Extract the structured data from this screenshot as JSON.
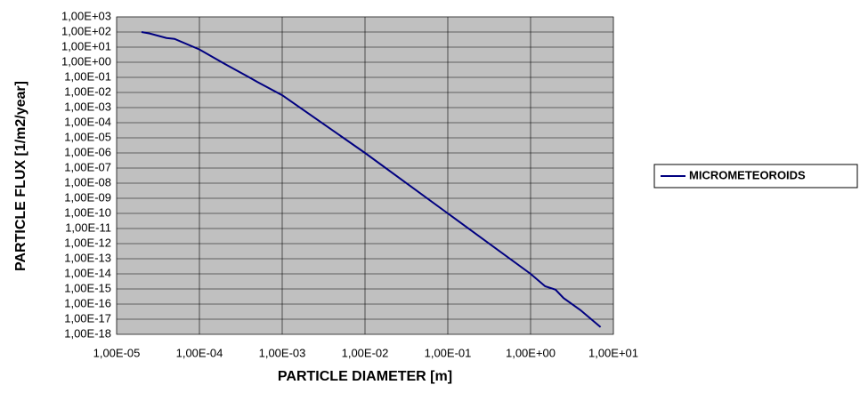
{
  "chart_data": {
    "type": "line",
    "x_label": "PARTICLE DIAMETER [m]",
    "y_label": "PARTICLE FLUX [1/m2/year]",
    "x": [
      2e-05,
      2.5e-05,
      4e-05,
      5e-05,
      0.0001,
      0.0002,
      0.0004,
      0.0005,
      0.001,
      0.01,
      0.1,
      1,
      1.5,
      2,
      2.5,
      4,
      7
    ],
    "series": [
      {
        "name": "MICROMETEOROIDS",
        "color": "#000080",
        "values": [
          100,
          80,
          40,
          35,
          7,
          0.8,
          0.1,
          0.05,
          0.0066,
          1e-06,
          1e-10,
          1e-14,
          1.5e-15,
          9e-16,
          2.5e-16,
          4e-17,
          3e-18
        ]
      }
    ],
    "x_log": true,
    "y_log": true,
    "grid": true,
    "legend": "right",
    "xlim": [
      1e-05,
      10
    ],
    "xticks": [
      {
        "value": 1e-05,
        "label": "1,00E-05"
      },
      {
        "value": 0.0001,
        "label": "1,00E-04"
      },
      {
        "value": 0.001,
        "label": "1,00E-03"
      },
      {
        "value": 0.01,
        "label": "1,00E-02"
      },
      {
        "value": 0.1,
        "label": "1,00E-01"
      },
      {
        "value": 1,
        "label": "1,00E+00"
      },
      {
        "value": 10,
        "label": "1,00E+01"
      }
    ],
    "ylim": [
      1e-18,
      1000
    ],
    "yticks": [
      {
        "value": 1000,
        "label": "1,00E+03"
      },
      {
        "value": 100,
        "label": "1,00E+02"
      },
      {
        "value": 10,
        "label": "1,00E+01"
      },
      {
        "value": 1,
        "label": "1,00E+00"
      },
      {
        "value": 0.1,
        "label": "1,00E-01"
      },
      {
        "value": 0.01,
        "label": "1,00E-02"
      },
      {
        "value": 0.001,
        "label": "1,00E-03"
      },
      {
        "value": 0.0001,
        "label": "1,00E-04"
      },
      {
        "value": 1e-05,
        "label": "1,00E-05"
      },
      {
        "value": 1e-06,
        "label": "1,00E-06"
      },
      {
        "value": 1e-07,
        "label": "1,00E-07"
      },
      {
        "value": 1e-08,
        "label": "1,00E-08"
      },
      {
        "value": 1e-09,
        "label": "1,00E-09"
      },
      {
        "value": 1e-10,
        "label": "1,00E-10"
      },
      {
        "value": 1e-11,
        "label": "1,00E-11"
      },
      {
        "value": 1e-12,
        "label": "1,00E-12"
      },
      {
        "value": 1e-13,
        "label": "1,00E-13"
      },
      {
        "value": 1e-14,
        "label": "1,00E-14"
      },
      {
        "value": 1e-15,
        "label": "1,00E-15"
      },
      {
        "value": 1e-16,
        "label": "1,00E-16"
      },
      {
        "value": 1e-17,
        "label": "1,00E-17"
      },
      {
        "value": 1e-18,
        "label": "1,00E-18"
      }
    ]
  }
}
